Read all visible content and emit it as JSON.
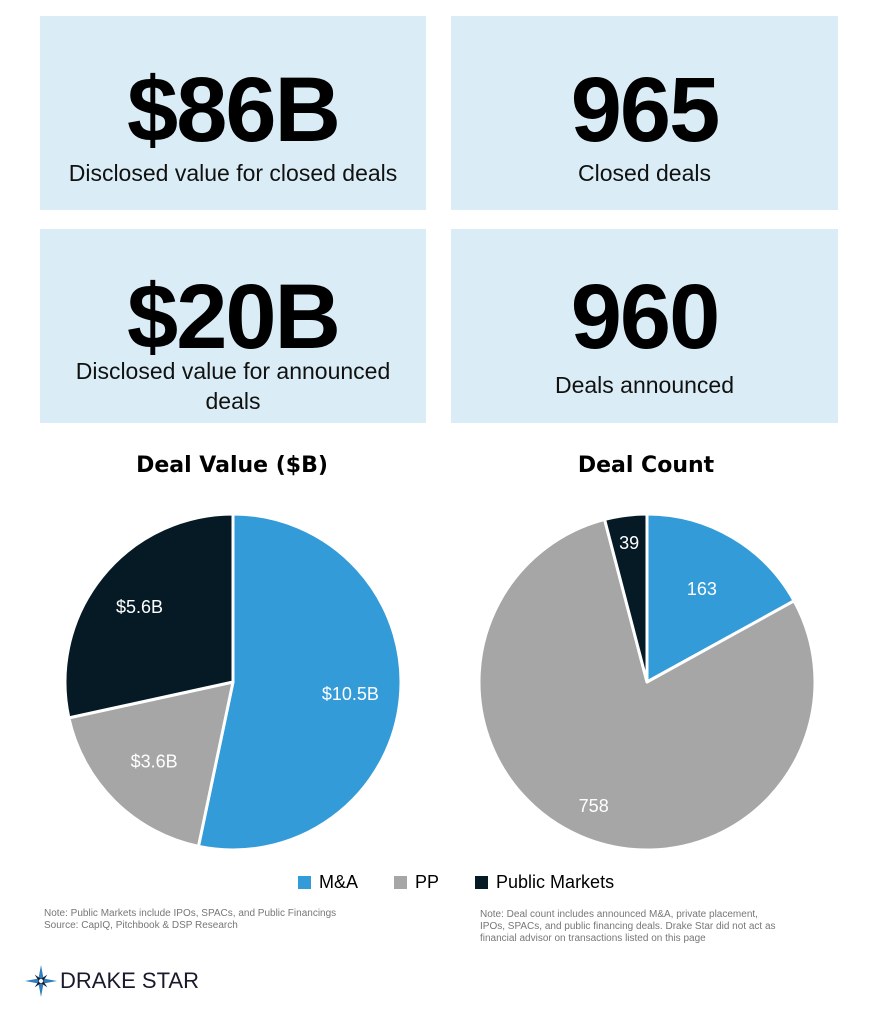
{
  "stats": [
    {
      "value": "$86B",
      "caption": "Disclosed value for closed deals"
    },
    {
      "value": "965",
      "caption": "Closed deals"
    },
    {
      "value": "$20B",
      "caption": "Disclosed value for announced deals"
    },
    {
      "value": "960",
      "caption": "Deals announced"
    }
  ],
  "chart_data": [
    {
      "type": "pie",
      "title": "Deal Value ($B)",
      "categories": [
        "M&A",
        "PP",
        "Public Markets"
      ],
      "values": [
        10.5,
        3.6,
        5.6
      ],
      "labels": [
        "$10.5B",
        "$3.6B",
        "$5.6B"
      ],
      "colors": [
        "#339bd8",
        "#a6a6a6",
        "#061a26"
      ]
    },
    {
      "type": "pie",
      "title": "Deal Count",
      "categories": [
        "M&A",
        "PP",
        "Public Markets"
      ],
      "values": [
        163,
        758,
        39
      ],
      "labels": [
        "163",
        "758",
        "39"
      ],
      "colors": [
        "#339bd8",
        "#a6a6a6",
        "#061a26"
      ]
    }
  ],
  "legend": {
    "placement": "bottom-center",
    "items": [
      {
        "label": "M&A",
        "color": "#339bd8"
      },
      {
        "label": "PP",
        "color": "#a6a6a6"
      },
      {
        "label": "Public Markets",
        "color": "#061a26"
      }
    ]
  },
  "notes": {
    "left": [
      "Note: Public Markets include IPOs, SPACs, and Public Financings",
      "Source: CapIQ, Pitchbook & DSP Research"
    ],
    "right": [
      "Note: Deal count includes announced M&A, private placement,",
      "IPOs, SPACs, and public financing deals. Drake Star did not act as",
      "financial advisor on transactions listed on this page"
    ]
  },
  "logo": {
    "text": "DRAKE STAR",
    "icon": "compass-star-icon",
    "color": "#2f7fc0"
  }
}
